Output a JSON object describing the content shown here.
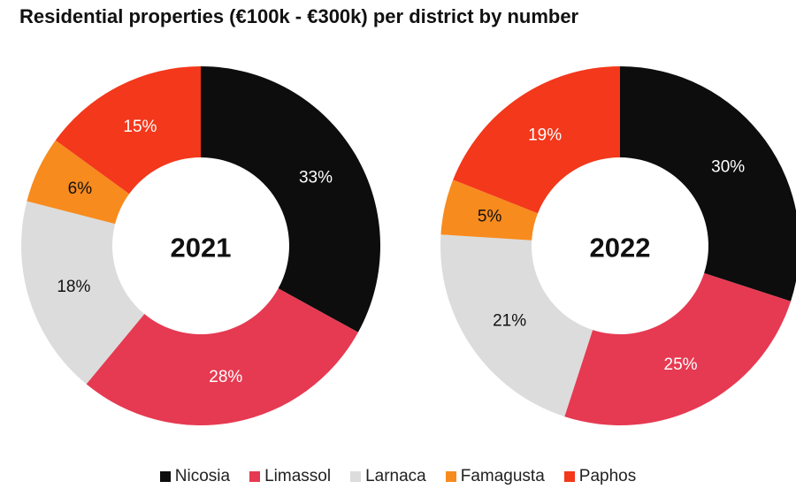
{
  "title": "Residential properties (€100k - €300k) per district by number",
  "legend": [
    {
      "name": "Nicosia",
      "color": "#0d0d0d"
    },
    {
      "name": "Limassol",
      "color": "#e63a52"
    },
    {
      "name": "Larnaca",
      "color": "#dcdcdc"
    },
    {
      "name": "Famagusta",
      "color": "#f78b1e"
    },
    {
      "name": "Paphos",
      "color": "#f3381b"
    }
  ],
  "chart_data": [
    {
      "type": "pie",
      "center_label": "2021",
      "slices": [
        {
          "name": "Nicosia",
          "value": 33,
          "label": "33%",
          "color": "#0d0d0d",
          "label_color": "#ffffff"
        },
        {
          "name": "Limassol",
          "value": 28,
          "label": "28%",
          "color": "#e63a52",
          "label_color": "#ffffff"
        },
        {
          "name": "Larnaca",
          "value": 18,
          "label": "18%",
          "color": "#dcdcdc",
          "label_color": "#111111"
        },
        {
          "name": "Famagusta",
          "value": 6,
          "label": "6%",
          "color": "#f78b1e",
          "label_color": "#111111"
        },
        {
          "name": "Paphos",
          "value": 15,
          "label": "15%",
          "color": "#f3381b",
          "label_color": "#ffffff"
        }
      ]
    },
    {
      "type": "pie",
      "center_label": "2022",
      "slices": [
        {
          "name": "Nicosia",
          "value": 30,
          "label": "30%",
          "color": "#0d0d0d",
          "label_color": "#ffffff"
        },
        {
          "name": "Limassol",
          "value": 25,
          "label": "25%",
          "color": "#e63a52",
          "label_color": "#ffffff"
        },
        {
          "name": "Larnaca",
          "value": 21,
          "label": "21%",
          "color": "#dcdcdc",
          "label_color": "#111111"
        },
        {
          "name": "Famagusta",
          "value": 5,
          "label": "5%",
          "color": "#f78b1e",
          "label_color": "#111111"
        },
        {
          "name": "Paphos",
          "value": 19,
          "label": "19%",
          "color": "#f3381b",
          "label_color": "#ffffff"
        }
      ]
    }
  ]
}
